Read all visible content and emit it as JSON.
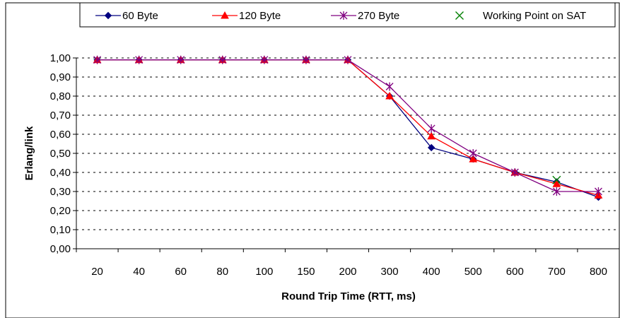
{
  "chart_data": {
    "type": "line",
    "xlabel": "Round Trip Time (RTT, ms)",
    "ylabel": "Erlang/link",
    "categories": [
      "20",
      "40",
      "60",
      "80",
      "100",
      "150",
      "200",
      "300",
      "400",
      "500",
      "600",
      "700",
      "800"
    ],
    "ylim": [
      0,
      1
    ],
    "yticks": [
      "0,00",
      "0,10",
      "0,20",
      "0,30",
      "0,40",
      "0,50",
      "0,60",
      "0,70",
      "0,80",
      "0,90",
      "1,00"
    ],
    "grid": "horizontal dashed",
    "legend_position": "top",
    "series": [
      {
        "name": "60 Byte",
        "color": "#000080",
        "marker": "diamond",
        "values": [
          0.99,
          0.99,
          0.99,
          0.99,
          0.99,
          0.99,
          0.99,
          0.8,
          0.53,
          0.47,
          0.4,
          0.35,
          0.27
        ]
      },
      {
        "name": "120 Byte",
        "color": "#ff0000",
        "marker": "triangle",
        "values": [
          0.99,
          0.99,
          0.99,
          0.99,
          0.99,
          0.99,
          0.99,
          0.8,
          0.59,
          0.47,
          0.4,
          0.34,
          0.28
        ]
      },
      {
        "name": "270 Byte",
        "color": "#800080",
        "marker": "asterisk",
        "values": [
          0.99,
          0.99,
          0.99,
          0.99,
          0.99,
          0.99,
          0.99,
          0.85,
          0.63,
          0.5,
          0.4,
          0.3,
          0.3
        ]
      },
      {
        "name": "Working Point on SAT",
        "color": "#008000",
        "marker": "x",
        "line": false,
        "points": [
          {
            "x": "700",
            "y": 0.36
          }
        ]
      }
    ]
  }
}
